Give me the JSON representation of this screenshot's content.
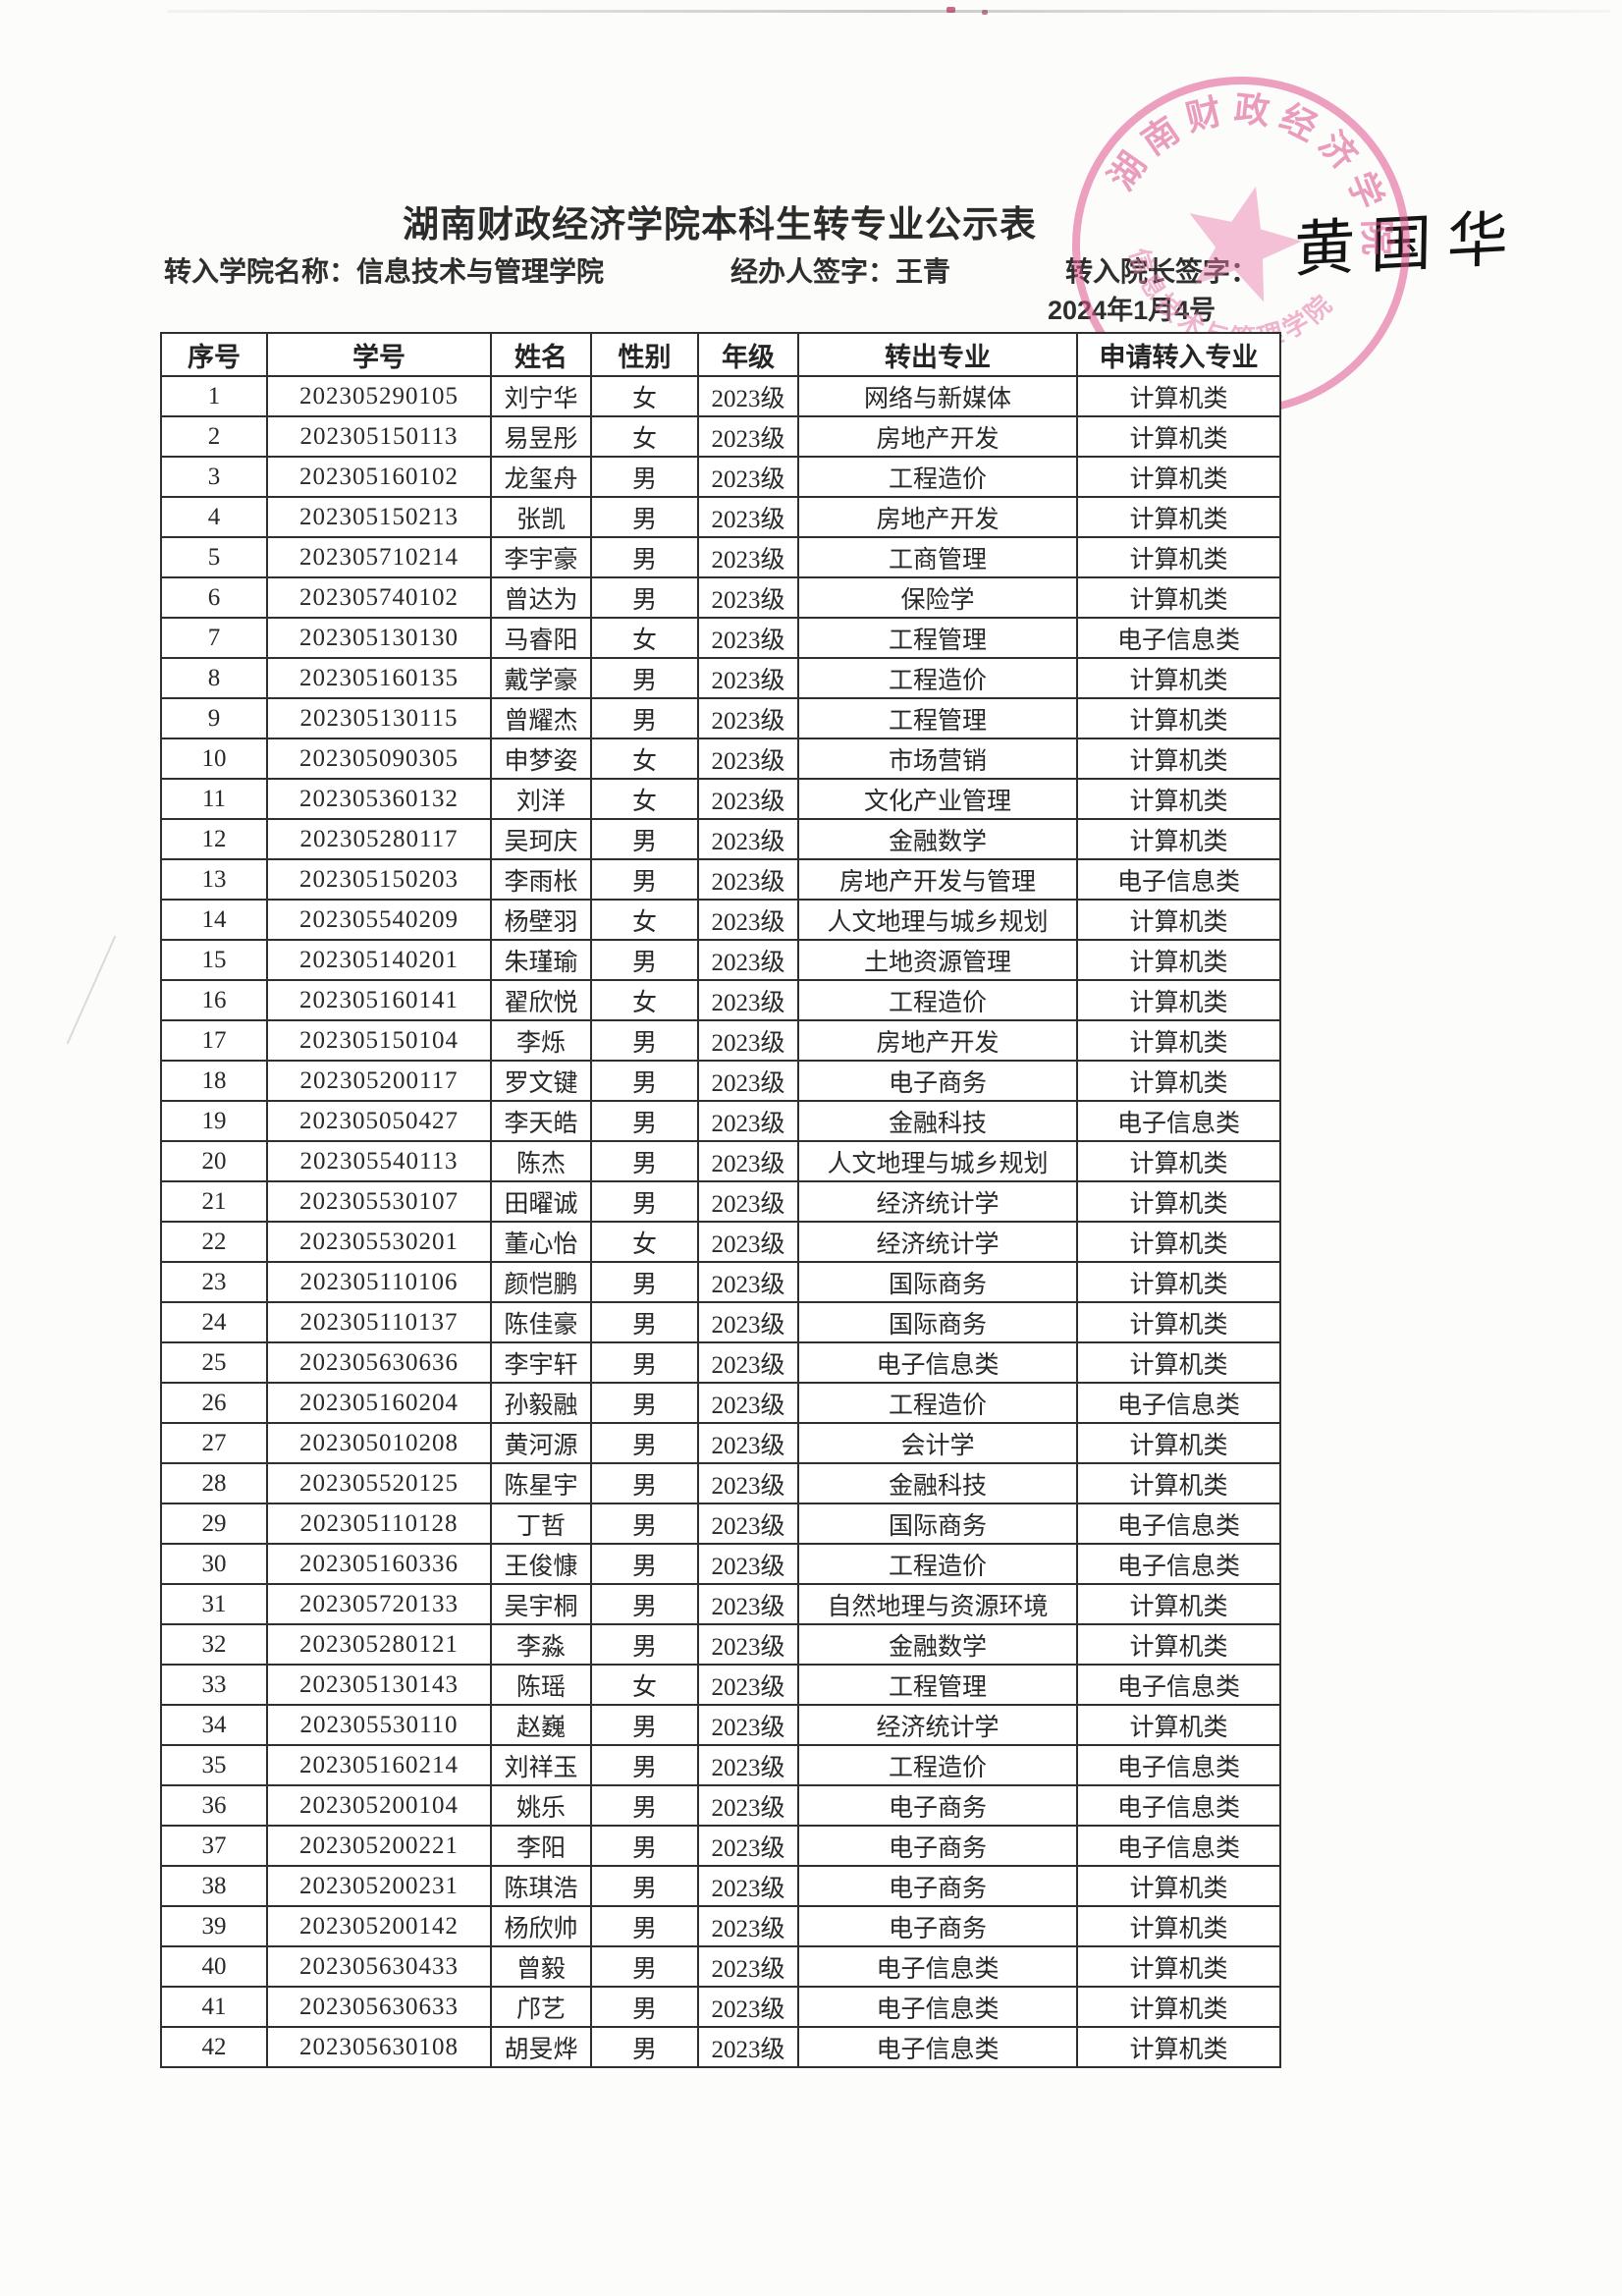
{
  "page": {
    "title": "湖南财政经济学院本科生转专业公示表",
    "info": {
      "college_label": "转入学院名称：",
      "college_value": "信息技术与管理学院",
      "handler_label": "经办人签字：",
      "handler_value": "王青",
      "dean_label": "转入院长签字：",
      "dean_signature": "黄国华",
      "date": "2024年1月4号"
    },
    "stamp": {
      "text_top": "湖南财政经济学院",
      "text_bottom": "信息技术与管理学院",
      "color": "#e0548f"
    }
  },
  "table": {
    "headers": [
      "序号",
      "学号",
      "姓名",
      "性别",
      "年级",
      "转出专业",
      "申请转入专业"
    ],
    "rows": [
      [
        "1",
        "202305290105",
        "刘宁华",
        "女",
        "2023级",
        "网络与新媒体",
        "计算机类"
      ],
      [
        "2",
        "202305150113",
        "易昱彤",
        "女",
        "2023级",
        "房地产开发",
        "计算机类"
      ],
      [
        "3",
        "202305160102",
        "龙玺舟",
        "男",
        "2023级",
        "工程造价",
        "计算机类"
      ],
      [
        "4",
        "202305150213",
        "张凯",
        "男",
        "2023级",
        "房地产开发",
        "计算机类"
      ],
      [
        "5",
        "202305710214",
        "李宇豪",
        "男",
        "2023级",
        "工商管理",
        "计算机类"
      ],
      [
        "6",
        "202305740102",
        "曾达为",
        "男",
        "2023级",
        "保险学",
        "计算机类"
      ],
      [
        "7",
        "202305130130",
        "马睿阳",
        "女",
        "2023级",
        "工程管理",
        "电子信息类"
      ],
      [
        "8",
        "202305160135",
        "戴学豪",
        "男",
        "2023级",
        "工程造价",
        "计算机类"
      ],
      [
        "9",
        "202305130115",
        "曾耀杰",
        "男",
        "2023级",
        "工程管理",
        "计算机类"
      ],
      [
        "10",
        "202305090305",
        "申梦姿",
        "女",
        "2023级",
        "市场营销",
        "计算机类"
      ],
      [
        "11",
        "202305360132",
        "刘洋",
        "女",
        "2023级",
        "文化产业管理",
        "计算机类"
      ],
      [
        "12",
        "202305280117",
        "吴珂庆",
        "男",
        "2023级",
        "金融数学",
        "计算机类"
      ],
      [
        "13",
        "202305150203",
        "李雨枨",
        "男",
        "2023级",
        "房地产开发与管理",
        "电子信息类"
      ],
      [
        "14",
        "202305540209",
        "杨壁羽",
        "女",
        "2023级",
        "人文地理与城乡规划",
        "计算机类"
      ],
      [
        "15",
        "202305140201",
        "朱瑾瑜",
        "男",
        "2023级",
        "土地资源管理",
        "计算机类"
      ],
      [
        "16",
        "202305160141",
        "翟欣悦",
        "女",
        "2023级",
        "工程造价",
        "计算机类"
      ],
      [
        "17",
        "202305150104",
        "李烁",
        "男",
        "2023级",
        "房地产开发",
        "计算机类"
      ],
      [
        "18",
        "202305200117",
        "罗文键",
        "男",
        "2023级",
        "电子商务",
        "计算机类"
      ],
      [
        "19",
        "202305050427",
        "李天皓",
        "男",
        "2023级",
        "金融科技",
        "电子信息类"
      ],
      [
        "20",
        "202305540113",
        "陈杰",
        "男",
        "2023级",
        "人文地理与城乡规划",
        "计算机类"
      ],
      [
        "21",
        "202305530107",
        "田曜诚",
        "男",
        "2023级",
        "经济统计学",
        "计算机类"
      ],
      [
        "22",
        "202305530201",
        "董心怡",
        "女",
        "2023级",
        "经济统计学",
        "计算机类"
      ],
      [
        "23",
        "202305110106",
        "颜恺鹏",
        "男",
        "2023级",
        "国际商务",
        "计算机类"
      ],
      [
        "24",
        "202305110137",
        "陈佳豪",
        "男",
        "2023级",
        "国际商务",
        "计算机类"
      ],
      [
        "25",
        "202305630636",
        "李宇轩",
        "男",
        "2023级",
        "电子信息类",
        "计算机类"
      ],
      [
        "26",
        "202305160204",
        "孙毅融",
        "男",
        "2023级",
        "工程造价",
        "电子信息类"
      ],
      [
        "27",
        "202305010208",
        "黄河源",
        "男",
        "2023级",
        "会计学",
        "计算机类"
      ],
      [
        "28",
        "202305520125",
        "陈星宇",
        "男",
        "2023级",
        "金融科技",
        "计算机类"
      ],
      [
        "29",
        "202305110128",
        "丁哲",
        "男",
        "2023级",
        "国际商务",
        "电子信息类"
      ],
      [
        "30",
        "202305160336",
        "王俊慷",
        "男",
        "2023级",
        "工程造价",
        "电子信息类"
      ],
      [
        "31",
        "202305720133",
        "吴宇桐",
        "男",
        "2023级",
        "自然地理与资源环境",
        "计算机类"
      ],
      [
        "32",
        "202305280121",
        "李淼",
        "男",
        "2023级",
        "金融数学",
        "计算机类"
      ],
      [
        "33",
        "202305130143",
        "陈瑶",
        "女",
        "2023级",
        "工程管理",
        "电子信息类"
      ],
      [
        "34",
        "202305530110",
        "赵巍",
        "男",
        "2023级",
        "经济统计学",
        "计算机类"
      ],
      [
        "35",
        "202305160214",
        "刘祥玉",
        "男",
        "2023级",
        "工程造价",
        "电子信息类"
      ],
      [
        "36",
        "202305200104",
        "姚乐",
        "男",
        "2023级",
        "电子商务",
        "电子信息类"
      ],
      [
        "37",
        "202305200221",
        "李阳",
        "男",
        "2023级",
        "电子商务",
        "电子信息类"
      ],
      [
        "38",
        "202305200231",
        "陈琪浩",
        "男",
        "2023级",
        "电子商务",
        "计算机类"
      ],
      [
        "39",
        "202305200142",
        "杨欣帅",
        "男",
        "2023级",
        "电子商务",
        "计算机类"
      ],
      [
        "40",
        "202305630433",
        "曾毅",
        "男",
        "2023级",
        "电子信息类",
        "计算机类"
      ],
      [
        "41",
        "202305630633",
        "邝艺",
        "男",
        "2023级",
        "电子信息类",
        "计算机类"
      ],
      [
        "42",
        "202305630108",
        "胡旻烨",
        "男",
        "2023级",
        "电子信息类",
        "计算机类"
      ]
    ]
  }
}
